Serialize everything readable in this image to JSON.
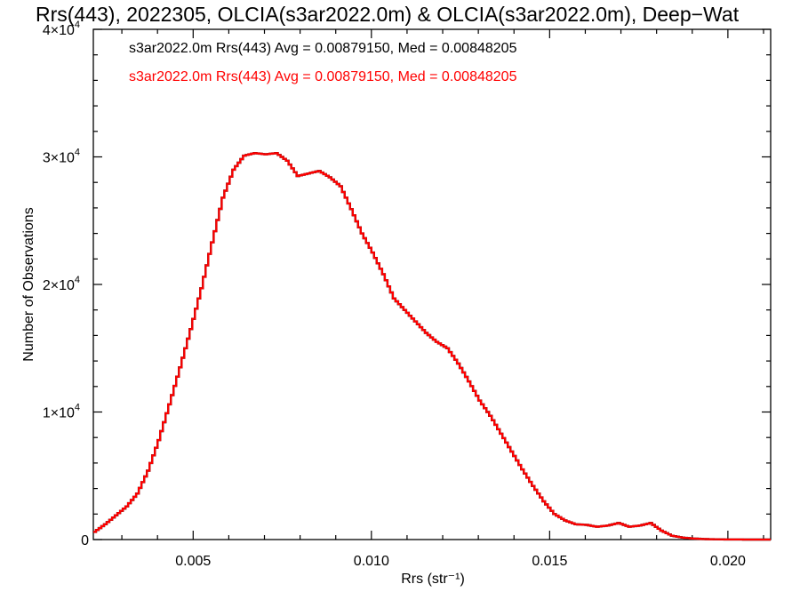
{
  "chart_data": {
    "type": "histogram-step",
    "title": "Rrs(443), 2022305, OLCIA(s3ar2022.0m) & OLCIA(s3ar2022.0m), Deep−Wat",
    "xlabel": "Rrs (str⁻¹)",
    "ylabel": "Number of Observations",
    "xlim": [
      0.0022,
      0.0212
    ],
    "ylim": [
      0,
      40000
    ],
    "x_ticks": [
      {
        "value": 0.005,
        "label": "0.005"
      },
      {
        "value": 0.01,
        "label": "0.010"
      },
      {
        "value": 0.015,
        "label": "0.015"
      },
      {
        "value": 0.02,
        "label": "0.020"
      }
    ],
    "y_ticks": [
      {
        "value": 0,
        "label": "0",
        "exp": ""
      },
      {
        "value": 10000,
        "label": "1×10",
        "exp": "4"
      },
      {
        "value": 20000,
        "label": "2×10",
        "exp": "4"
      },
      {
        "value": 30000,
        "label": "3×10",
        "exp": "4"
      },
      {
        "value": 40000,
        "label": "4×10",
        "exp": "4"
      }
    ],
    "legend": [
      {
        "text": "s3ar2022.0m Rrs(443) Avg = 0.00879150, Med = 0.00848205",
        "color": "#000000"
      },
      {
        "text": "s3ar2022.0m Rrs(443) Avg = 0.00879150, Med = 0.00848205",
        "color": "#ff0000"
      }
    ],
    "legend_position": "top-left",
    "series": [
      {
        "color": "#ff0000",
        "overlaps_color": "#000000",
        "points": [
          [
            0.0022,
            600
          ],
          [
            0.0025,
            1200
          ],
          [
            0.0028,
            1900
          ],
          [
            0.0031,
            2600
          ],
          [
            0.0034,
            3600
          ],
          [
            0.0037,
            5400
          ],
          [
            0.004,
            7800
          ],
          [
            0.0043,
            10600
          ],
          [
            0.0046,
            13500
          ],
          [
            0.0049,
            16500
          ],
          [
            0.0052,
            19700
          ],
          [
            0.0055,
            23300
          ],
          [
            0.0058,
            26800
          ],
          [
            0.0061,
            29000
          ],
          [
            0.0064,
            30100
          ],
          [
            0.0067,
            30300
          ],
          [
            0.007,
            30200
          ],
          [
            0.0073,
            30300
          ],
          [
            0.0076,
            29700
          ],
          [
            0.0079,
            28500
          ],
          [
            0.0082,
            28700
          ],
          [
            0.0085,
            28900
          ],
          [
            0.0088,
            28400
          ],
          [
            0.0091,
            27700
          ],
          [
            0.0094,
            25900
          ],
          [
            0.0097,
            24000
          ],
          [
            0.01,
            22500
          ],
          [
            0.0103,
            20800
          ],
          [
            0.0106,
            18900
          ],
          [
            0.0109,
            18000
          ],
          [
            0.0112,
            17100
          ],
          [
            0.0115,
            16200
          ],
          [
            0.0118,
            15500
          ],
          [
            0.0121,
            15000
          ],
          [
            0.0124,
            13800
          ],
          [
            0.0127,
            12400
          ],
          [
            0.013,
            10900
          ],
          [
            0.0133,
            9700
          ],
          [
            0.0136,
            8300
          ],
          [
            0.0139,
            6900
          ],
          [
            0.0142,
            5500
          ],
          [
            0.0145,
            4200
          ],
          [
            0.0148,
            3000
          ],
          [
            0.0151,
            2000
          ],
          [
            0.0154,
            1500
          ],
          [
            0.0157,
            1200
          ],
          [
            0.016,
            1150
          ],
          [
            0.0163,
            1000
          ],
          [
            0.0166,
            1100
          ],
          [
            0.0169,
            1300
          ],
          [
            0.0172,
            1000
          ],
          [
            0.0175,
            1100
          ],
          [
            0.0178,
            1300
          ],
          [
            0.0181,
            700
          ],
          [
            0.0184,
            300
          ],
          [
            0.0187,
            150
          ],
          [
            0.019,
            80
          ],
          [
            0.0193,
            40
          ],
          [
            0.0196,
            20
          ],
          [
            0.0199,
            10
          ],
          [
            0.0202,
            5
          ],
          [
            0.0205,
            2
          ],
          [
            0.0208,
            1
          ],
          [
            0.0212,
            0
          ]
        ]
      }
    ],
    "grid": false
  }
}
